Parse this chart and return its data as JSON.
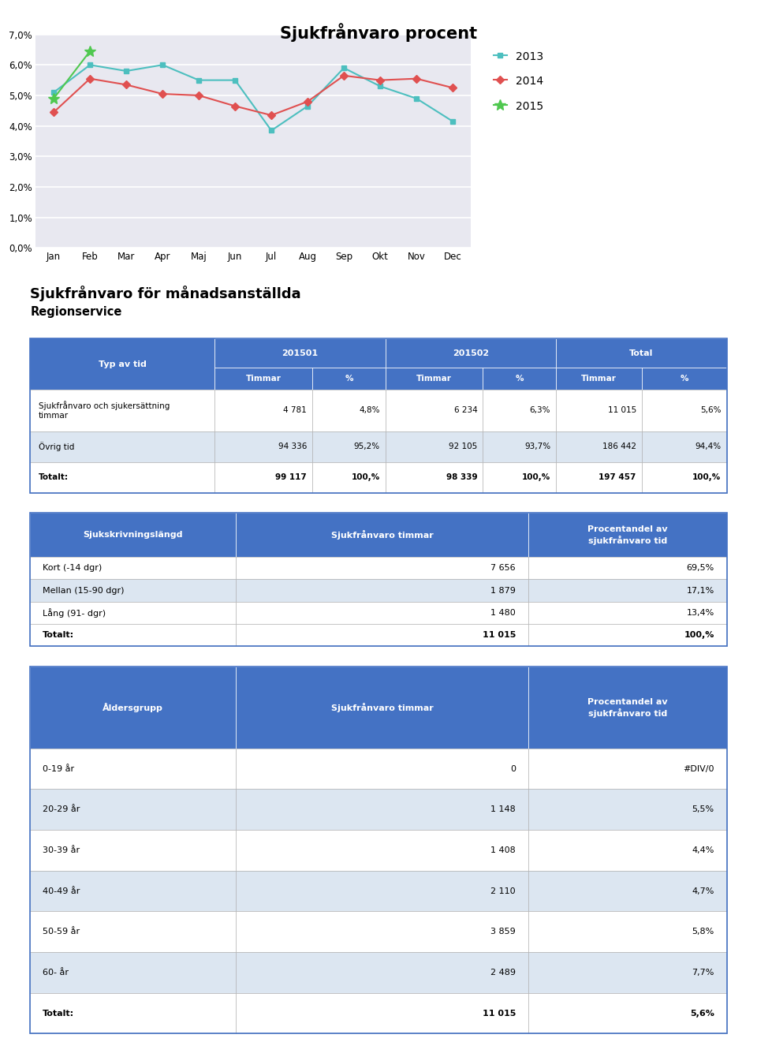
{
  "chart_title": "Sjukfrånvaro procent",
  "months": [
    "Jan",
    "Feb",
    "Mar",
    "Apr",
    "Maj",
    "Jun",
    "Jul",
    "Aug",
    "Sep",
    "Okt",
    "Nov",
    "Dec"
  ],
  "series_2013": [
    5.1,
    6.0,
    5.8,
    6.0,
    5.5,
    5.5,
    3.85,
    4.65,
    5.9,
    5.3,
    4.9,
    4.15
  ],
  "series_2014": [
    4.45,
    5.55,
    5.35,
    5.05,
    5.0,
    4.65,
    4.35,
    4.8,
    5.65,
    5.5,
    5.55,
    5.25
  ],
  "series_2015": [
    4.9,
    6.45,
    null,
    null,
    null,
    null,
    null,
    null,
    null,
    null,
    null,
    null
  ],
  "color_2013": "#4DBFBF",
  "color_2014": "#E05050",
  "color_2015": "#50C850",
  "yticks": [
    0.0,
    1.0,
    2.0,
    3.0,
    4.0,
    5.0,
    6.0,
    7.0
  ],
  "ytick_labels": [
    "0,0%",
    "1,0%",
    "2,0%",
    "3,0%",
    "4,0%",
    "5,0%",
    "6,0%",
    "7,0%"
  ],
  "section_title": "Sjukfrånvaro för månadsanställda",
  "region_label": "Regionservice",
  "table1_rows": [
    [
      "Sjukfrånvaro och sjukersättning\ntimmar",
      "4 781",
      "4,8%",
      "6 234",
      "6,3%",
      "11 015",
      "5,6%"
    ],
    [
      "Övrig tid",
      "94 336",
      "95,2%",
      "92 105",
      "93,7%",
      "186 442",
      "94,4%"
    ],
    [
      "Totalt:",
      "99 117",
      "100,%",
      "98 339",
      "100,%",
      "197 457",
      "100,%"
    ]
  ],
  "table2_headers": [
    "Sjukskrivningslängd",
    "Sjukfrånvaro timmar",
    "Procentandel av\nsjukfrånvaro tid"
  ],
  "table2_rows": [
    [
      "Kort (-14 dgr)",
      "7 656",
      "69,5%"
    ],
    [
      "Mellan (15-90 dgr)",
      "1 879",
      "17,1%"
    ],
    [
      "Lång (91- dgr)",
      "1 480",
      "13,4%"
    ],
    [
      "Totalt:",
      "11 015",
      "100,%"
    ]
  ],
  "table3_headers": [
    "Åldersgrupp",
    "Sjukfrånvaro timmar",
    "Procentandel av\nsjukfrånvaro tid"
  ],
  "table3_rows": [
    [
      "0-19 år",
      "0",
      "#DIV/0"
    ],
    [
      "20-29 år",
      "1 148",
      "5,5%"
    ],
    [
      "30-39 år",
      "1 408",
      "4,4%"
    ],
    [
      "40-49 år",
      "2 110",
      "4,7%"
    ],
    [
      "50-59 år",
      "3 859",
      "5,8%"
    ],
    [
      "60- år",
      "2 489",
      "7,7%"
    ],
    [
      "Totalt:",
      "11 015",
      "5,6%"
    ]
  ],
  "header_bg": "#4472C4",
  "header_fg": "#FFFFFF",
  "plot_bg": "#E8E8F0"
}
